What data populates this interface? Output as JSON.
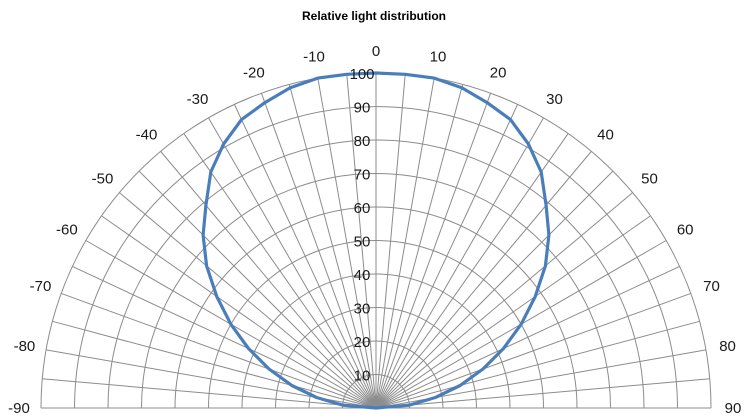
{
  "chart_data": {
    "type": "polar-line",
    "title": "Relative light distribution",
    "angle_unit": "degrees",
    "angle_range": [
      -90,
      90
    ],
    "angle_ticks": [
      -90,
      -80,
      -70,
      -60,
      -50,
      -40,
      -30,
      -20,
      -10,
      0,
      10,
      20,
      30,
      40,
      50,
      60,
      70,
      80,
      90
    ],
    "angle_tick_labels": [
      "-90",
      "-80",
      "-70",
      "-60",
      "-50",
      "-40",
      "-30",
      "-20",
      "-10",
      "0",
      "10",
      "20",
      "30",
      "40",
      "50",
      "60",
      "70",
      "80",
      "90"
    ],
    "radial_range": [
      0,
      100
    ],
    "radial_ticks": [
      10,
      20,
      30,
      40,
      50,
      60,
      70,
      80,
      90,
      100
    ],
    "radial_tick_labels": [
      "10",
      "20",
      "30",
      "40",
      "50",
      "60",
      "70",
      "80",
      "90",
      "100"
    ],
    "grid": true,
    "legend": "none",
    "series": [
      {
        "color": "#4a7ebb",
        "angles": [
          -90,
          -85,
          -80,
          -75,
          -70,
          -65,
          -60,
          -55,
          -50,
          -45,
          -40,
          -35,
          -30,
          -25,
          -20,
          -15,
          -10,
          -5,
          0,
          5,
          10,
          15,
          20,
          25,
          30,
          35,
          40,
          45,
          50,
          55,
          60,
          65,
          70,
          75,
          80,
          85,
          90
        ],
        "values": [
          0,
          10,
          18,
          26,
          34,
          42,
          50,
          58,
          66,
          73,
          79,
          86,
          91,
          95,
          97,
          99,
          100,
          100,
          100,
          100,
          100,
          99,
          97,
          95,
          91,
          86,
          79,
          73,
          66,
          58,
          50,
          42,
          34,
          26,
          18,
          10,
          0
        ]
      }
    ]
  }
}
